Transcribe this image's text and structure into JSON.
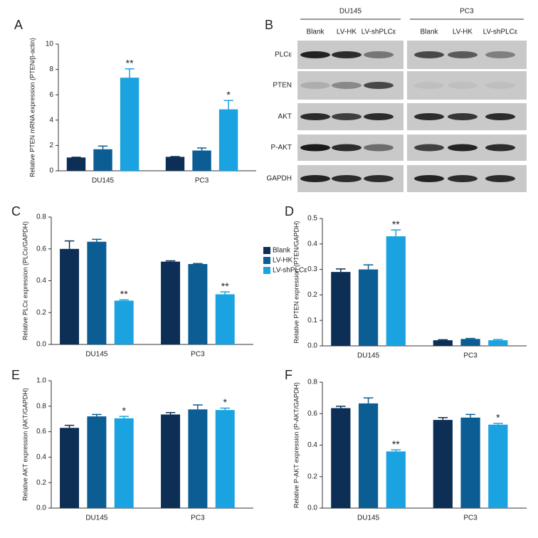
{
  "chart_data": [
    {
      "type": "bar",
      "panel": "A",
      "ylabel": "Relative PTEN mRNA expression (PTEN/β-actin)",
      "categories": [
        "DU145",
        "PC3"
      ],
      "ylim": [
        0,
        10
      ],
      "yticks": [
        0,
        2,
        4,
        6,
        8,
        10
      ],
      "series": [
        {
          "color": "#0d2f55",
          "values": [
            1.05,
            1.1
          ],
          "errors": [
            0.02,
            0.02
          ]
        },
        {
          "color": "#0b5d94",
          "values": [
            1.7,
            1.6
          ],
          "errors": [
            0.25,
            0.2
          ]
        },
        {
          "color": "#1aa3e0",
          "values": [
            7.35,
            4.85
          ],
          "errors": [
            0.7,
            0.7
          ],
          "significance": [
            "**",
            "*"
          ]
        }
      ]
    },
    {
      "type": "bar",
      "panel": "C",
      "ylabel": "Relative PLCε expression (PLCε/GAPDH)",
      "categories": [
        "DU145",
        "PC3"
      ],
      "ylim": [
        0,
        0.8
      ],
      "yticks": [
        {
          "value": 0,
          "label": "0.0"
        },
        0.2,
        0.4,
        0.6,
        0.8
      ],
      "legend": "right",
      "series": [
        {
          "name": "Blank",
          "color": "#0d2f55",
          "values": [
            0.6,
            0.52
          ],
          "errors": [
            0.05,
            0.005
          ]
        },
        {
          "name": "LV-HK",
          "color": "#0b5d94",
          "values": [
            0.645,
            0.505
          ],
          "errors": [
            0.015,
            0.003
          ]
        },
        {
          "name": "LV-shPLCε",
          "color": "#1aa3e0",
          "values": [
            0.275,
            0.315
          ],
          "errors": [
            0.005,
            0.015
          ],
          "significance": [
            "**",
            "**"
          ]
        }
      ]
    },
    {
      "type": "bar",
      "panel": "D",
      "ylabel": "Relative PTEN expression (PTEN/GAPDH)",
      "categories": [
        "DU145",
        "PC3"
      ],
      "ylim": [
        0,
        0.5
      ],
      "yticks": [
        {
          "value": 0,
          "label": "0.0"
        },
        0.1,
        0.2,
        0.3,
        0.4,
        0.5
      ],
      "series": [
        {
          "color": "#0d2f55",
          "values": [
            0.29,
            0.022
          ],
          "errors": [
            0.012,
            0.002
          ]
        },
        {
          "color": "#0b5d94",
          "values": [
            0.3,
            0.027
          ],
          "errors": [
            0.018,
            0.002
          ]
        },
        {
          "color": "#1aa3e0",
          "values": [
            0.43,
            0.022
          ],
          "errors": [
            0.025,
            0.003
          ],
          "significance": [
            "**",
            null
          ]
        }
      ]
    },
    {
      "type": "bar",
      "panel": "E",
      "ylabel": "Relative AKT expression (AKT/GAPDH)",
      "categories": [
        "DU145",
        "PC3"
      ],
      "ylim": [
        0,
        1
      ],
      "yticks": [
        {
          "value": 0,
          "label": "0.0"
        },
        0.2,
        0.4,
        0.6,
        0.8,
        {
          "value": 1,
          "label": "1.0"
        }
      ],
      "series": [
        {
          "color": "#0d2f55",
          "values": [
            0.63,
            0.735
          ],
          "errors": [
            0.02,
            0.015
          ]
        },
        {
          "color": "#0b5d94",
          "values": [
            0.72,
            0.775
          ],
          "errors": [
            0.015,
            0.035
          ]
        },
        {
          "color": "#1aa3e0",
          "values": [
            0.705,
            0.77
          ],
          "errors": [
            0.015,
            0.015
          ],
          "significance": [
            "*",
            "*"
          ]
        }
      ]
    },
    {
      "type": "bar",
      "panel": "F",
      "ylabel": "Relative P-AKT expression (P-AKT/GAPDH)",
      "categories": [
        "DU145",
        "PC3"
      ],
      "ylim": [
        0,
        0.8
      ],
      "yticks": [
        {
          "value": 0,
          "label": "0.0"
        },
        0.2,
        0.4,
        0.6,
        0.8
      ],
      "series": [
        {
          "color": "#0d2f55",
          "values": [
            0.635,
            0.56
          ],
          "errors": [
            0.012,
            0.015
          ]
        },
        {
          "color": "#0b5d94",
          "values": [
            0.665,
            0.575
          ],
          "errors": [
            0.035,
            0.02
          ]
        },
        {
          "color": "#1aa3e0",
          "values": [
            0.36,
            0.53
          ],
          "errors": [
            0.01,
            0.008
          ],
          "significance": [
            "**",
            "*"
          ]
        }
      ]
    }
  ],
  "blot": {
    "panel": "B",
    "groups": [
      "DU145",
      "PC3"
    ],
    "lanes": [
      "Blank",
      "LV-HK",
      "LV-shPLCε",
      "Blank",
      "LV-HK",
      "LV-shPLCε"
    ],
    "rows": [
      "PLCε",
      "PTEN",
      "AKT",
      "P-AKT",
      "GAPDH"
    ]
  }
}
